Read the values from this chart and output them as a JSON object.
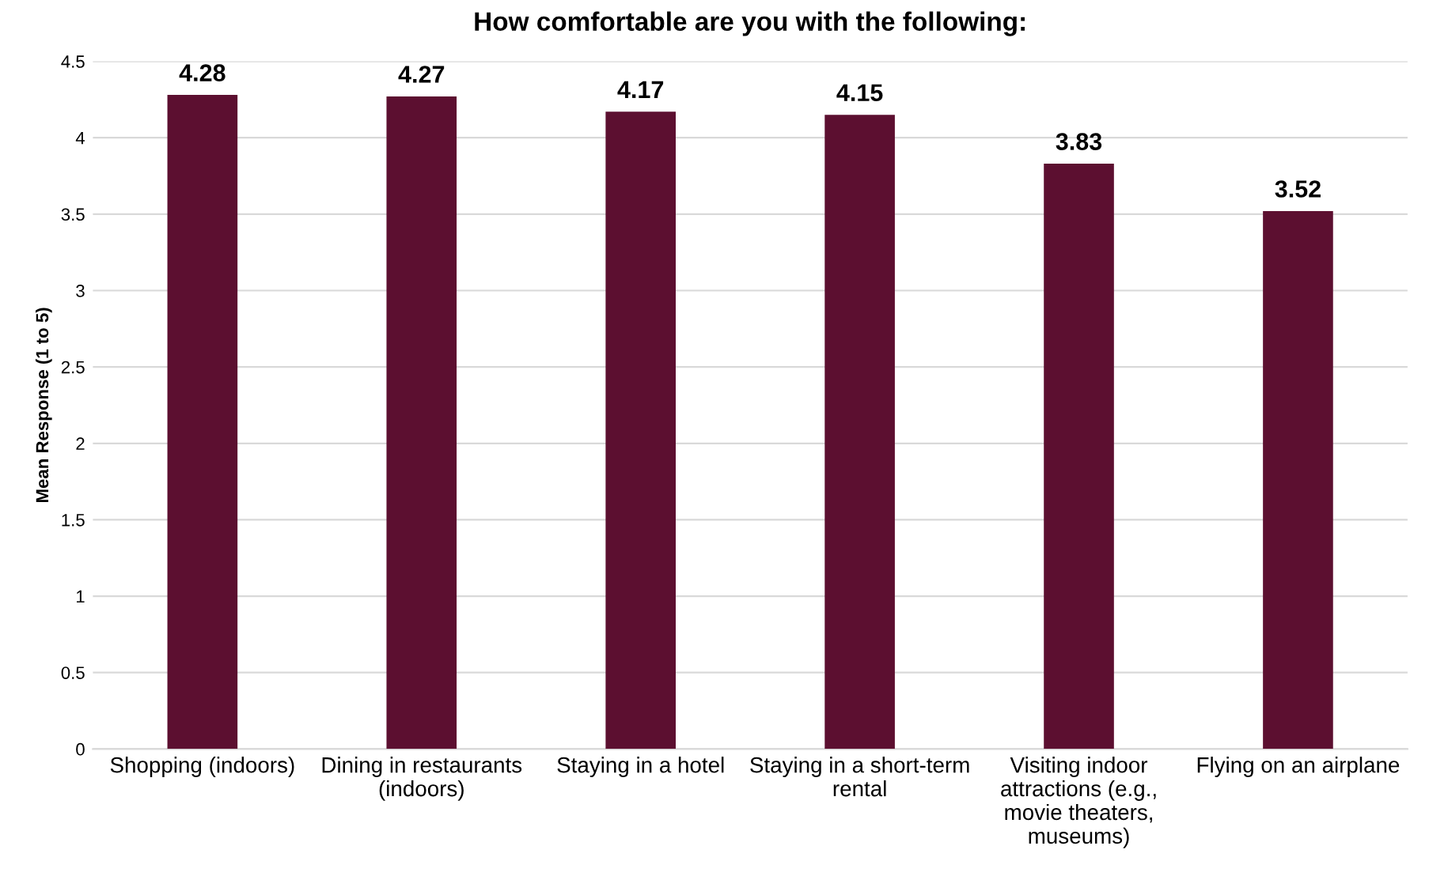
{
  "chart_data": {
    "type": "bar",
    "title": "How comfortable are you with the following:",
    "ylabel": "Mean Response (1 to 5)",
    "categories": [
      "Shopping (indoors)",
      "Dining in restaurants\n(indoors)",
      "Staying in a hotel",
      "Staying in a short-term\nrental",
      "Visiting indoor\nattractions (e.g.,\nmovie theaters,\nmuseums)",
      "Flying on an airplane"
    ],
    "values": [
      4.28,
      4.27,
      4.17,
      4.15,
      3.83,
      3.52
    ],
    "color": "#5c0f30",
    "ylim": [
      0,
      4.5
    ],
    "yticks": [
      0,
      0.5,
      1,
      1.5,
      2,
      2.5,
      3,
      3.5,
      4,
      4.5
    ],
    "grid": "y",
    "data_labels": true
  }
}
